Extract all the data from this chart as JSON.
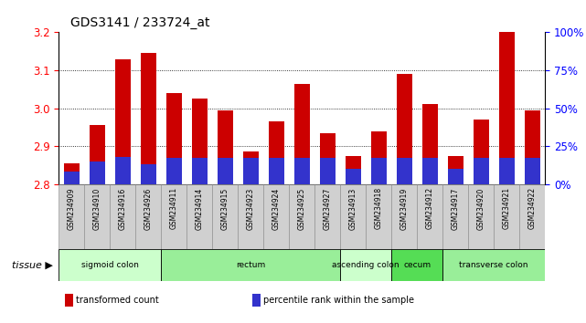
{
  "title": "GDS3141 / 233724_at",
  "samples": [
    "GSM234909",
    "GSM234910",
    "GSM234916",
    "GSM234926",
    "GSM234911",
    "GSM234914",
    "GSM234915",
    "GSM234923",
    "GSM234924",
    "GSM234925",
    "GSM234927",
    "GSM234913",
    "GSM234918",
    "GSM234919",
    "GSM234912",
    "GSM234917",
    "GSM234920",
    "GSM234921",
    "GSM234922"
  ],
  "transformed_count": [
    2.855,
    2.955,
    3.13,
    3.145,
    3.04,
    3.025,
    2.995,
    2.885,
    2.965,
    3.065,
    2.935,
    2.875,
    2.94,
    3.09,
    3.01,
    2.875,
    2.97,
    3.2,
    2.995
  ],
  "percentile_rank_pct": [
    8,
    15,
    18,
    13,
    17,
    17,
    17,
    17,
    17,
    17,
    17,
    10,
    17,
    17,
    17,
    10,
    17,
    17,
    17
  ],
  "ylim_left": [
    2.8,
    3.2
  ],
  "ylim_right": [
    0,
    100
  ],
  "yticks_left": [
    2.8,
    2.9,
    3.0,
    3.1,
    3.2
  ],
  "yticks_right": [
    0,
    25,
    50,
    75,
    100
  ],
  "ytick_labels_right": [
    "0%",
    "25%",
    "50%",
    "75%",
    "100%"
  ],
  "bar_color": "#cc0000",
  "blue_color": "#3333cc",
  "base_value": 2.8,
  "tissue_groups": [
    {
      "label": "sigmoid colon",
      "start": 0,
      "end": 3,
      "color": "#ccffcc"
    },
    {
      "label": "rectum",
      "start": 4,
      "end": 10,
      "color": "#99ee99"
    },
    {
      "label": "ascending colon",
      "start": 11,
      "end": 12,
      "color": "#ccffcc"
    },
    {
      "label": "cecum",
      "start": 13,
      "end": 14,
      "color": "#55dd55"
    },
    {
      "label": "transverse colon",
      "start": 15,
      "end": 18,
      "color": "#99ee99"
    }
  ],
  "legend_items": [
    {
      "color": "#cc0000",
      "label": "transformed count"
    },
    {
      "color": "#3333cc",
      "label": "percentile rank within the sample"
    }
  ],
  "grid_yticks": [
    2.9,
    3.0,
    3.1
  ],
  "sample_bg_color": "#d0d0d0",
  "bar_width": 0.6
}
